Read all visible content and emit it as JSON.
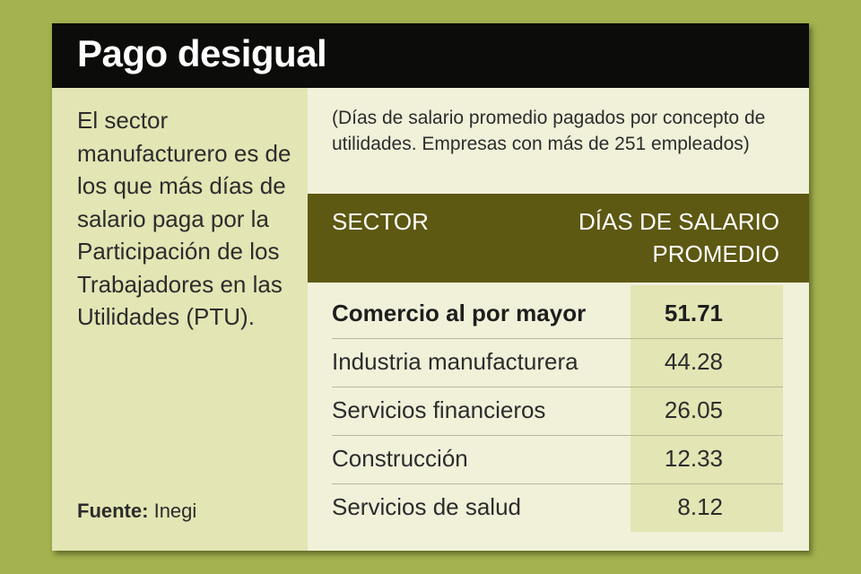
{
  "title": "Pago desigual",
  "description": "El sector manufacturero es de los que más días de salario paga por la Participación de los Trabajadores en las Utilidades (PTU).",
  "source": {
    "label": "Fuente:",
    "value": "Inegi"
  },
  "note": "(Días de salario promedio pagados por concepto de utilidades. Empresas con más de 251 empleados)",
  "colors": {
    "background": "#a4b24f",
    "title_bar": "#0c0c0a",
    "header_band": "#5d5812",
    "panel": "#e3e5b4",
    "card": "#f1f1da"
  },
  "chart_data": {
    "type": "table",
    "columns": [
      "SECTOR",
      "DÍAS DE SALARIO PROMEDIO"
    ],
    "rows": [
      {
        "sector": "Comercio al por mayor",
        "value": "51.71",
        "highlight": true
      },
      {
        "sector": "Industria manufacturera",
        "value": "44.28",
        "highlight": false
      },
      {
        "sector": "Servicios financieros",
        "value": "26.05",
        "highlight": false
      },
      {
        "sector": "Construcción",
        "value": "12.33",
        "highlight": false
      },
      {
        "sector": "Servicios de salud",
        "value": "8.12",
        "highlight": false
      }
    ]
  }
}
